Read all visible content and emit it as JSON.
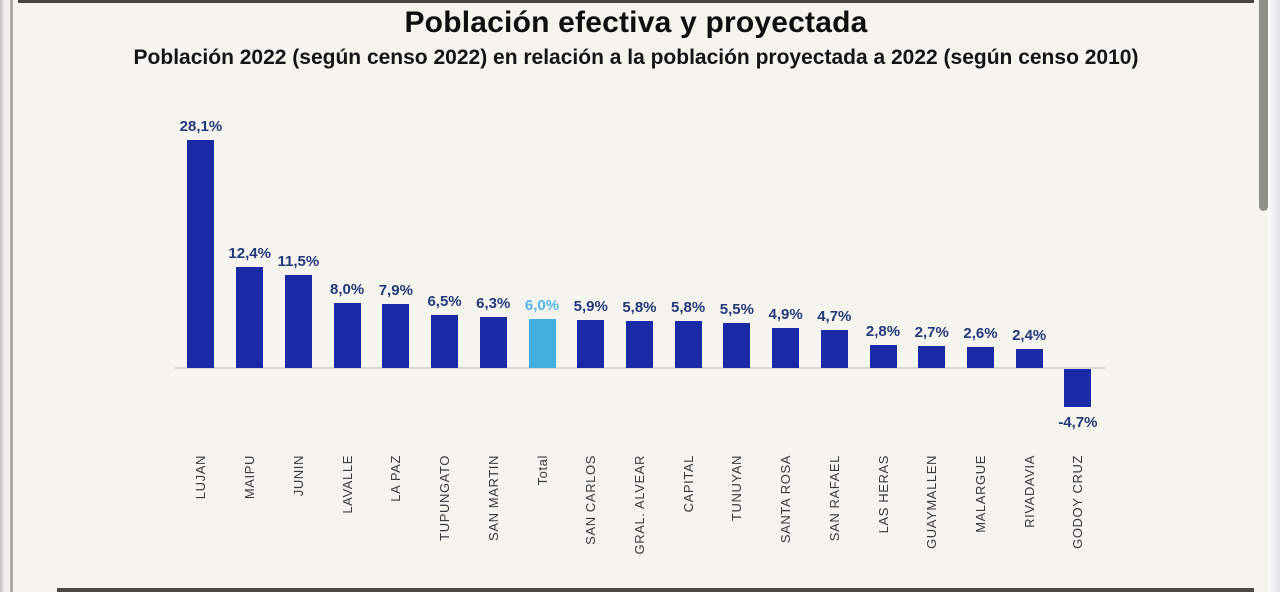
{
  "chart_data": {
    "type": "bar",
    "title": "Población efectiva y proyectada",
    "subtitle": "Población 2022 (según censo 2022) en relación a la población proyectada a 2022 (según censo 2010)",
    "categories": [
      "LUJAN",
      "MAIPU",
      "JUNIN",
      "LAVALLE",
      "LA PAZ",
      "TUPUNGATO",
      "SAN MARTIN",
      "Total",
      "SAN CARLOS",
      "GRAL. ALVEAR",
      "CAPITAL",
      "TUNUYAN",
      "SANTA ROSA",
      "SAN RAFAEL",
      "LAS HERAS",
      "GUAYMALLEN",
      "MALARGUE",
      "RIVADAVIA",
      "GODOY CRUZ"
    ],
    "values": [
      28.1,
      12.4,
      11.5,
      8.0,
      7.9,
      6.5,
      6.3,
      6.0,
      5.9,
      5.8,
      5.8,
      5.5,
      4.9,
      4.7,
      2.8,
      2.7,
      2.6,
      2.4,
      -4.7
    ],
    "value_labels": [
      "28,1%",
      "12,4%",
      "11,5%",
      "8,0%",
      "7,9%",
      "6,5%",
      "6,3%",
      "6,0%",
      "5,9%",
      "5,8%",
      "5,8%",
      "5,5%",
      "4,9%",
      "4,7%",
      "2,8%",
      "2,7%",
      "2,6%",
      "2,4%",
      "-4,7%"
    ],
    "highlight_category": "Total",
    "unit": "%",
    "ylim": [
      -6,
      30
    ],
    "grid": false,
    "legend": false,
    "bar_color": "#1A2AA6",
    "highlight_color": "#41B0DE",
    "label_color": "#24397B",
    "highlight_label_color": "#52B9E8",
    "axis_line_color": "#DCDAD4"
  },
  "viewer": {
    "scrollbar": "vertical-scrollbar-thumb-top"
  }
}
